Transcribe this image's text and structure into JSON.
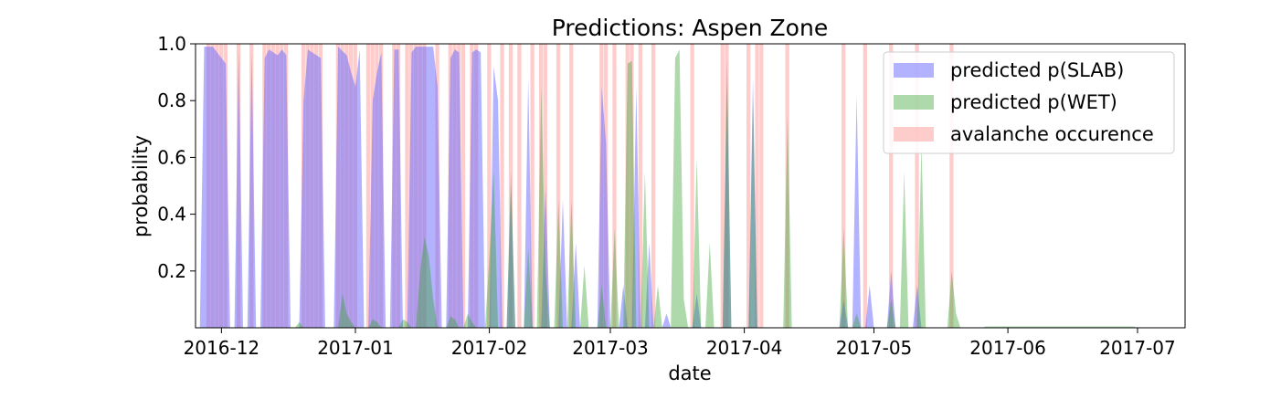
{
  "chart_data": {
    "type": "area",
    "title": "Predictions: Aspen Zone",
    "xlabel": "date",
    "ylabel": "probability",
    "x_range": [
      "2016-11-25",
      "2017-07-12"
    ],
    "ylim": [
      0.0,
      1.0
    ],
    "x_ticks": [
      "2016-12-01",
      "2017-01-01",
      "2017-02-01",
      "2017-03-01",
      "2017-04-01",
      "2017-05-01",
      "2017-06-01",
      "2017-07-01"
    ],
    "x_tick_labels": [
      "2016-12",
      "2017-01",
      "2017-02",
      "2017-03",
      "2017-04",
      "2017-05",
      "2017-06",
      "2017-07"
    ],
    "y_ticks": [
      0.2,
      0.4,
      0.6,
      0.8,
      1.0
    ],
    "y_tick_labels": [
      "0.2",
      "0.4",
      "0.6",
      "0.8",
      "1.0"
    ],
    "grid": false,
    "legend_position": "top-right",
    "series": [
      {
        "name": "predicted p(SLAB)",
        "color": "#6666ff",
        "points": [
          [
            "2016-11-26",
            0.0
          ],
          [
            "2016-11-27",
            0.99
          ],
          [
            "2016-11-29",
            0.99
          ],
          [
            "2016-11-30",
            0.97
          ],
          [
            "2016-12-02",
            0.93
          ],
          [
            "2016-12-03",
            0.0
          ],
          [
            "2016-12-04",
            0.0
          ],
          [
            "2016-12-05",
            0.98
          ],
          [
            "2016-12-06",
            0.0
          ],
          [
            "2016-12-07",
            0.0
          ],
          [
            "2016-12-08",
            0.97
          ],
          [
            "2016-12-09",
            0.0
          ],
          [
            "2016-12-10",
            0.0
          ],
          [
            "2016-12-11",
            0.95
          ],
          [
            "2016-12-12",
            0.98
          ],
          [
            "2016-12-14",
            0.96
          ],
          [
            "2016-12-15",
            0.98
          ],
          [
            "2016-12-16",
            0.96
          ],
          [
            "2016-12-17",
            0.0
          ],
          [
            "2016-12-19",
            0.0
          ],
          [
            "2016-12-20",
            0.8
          ],
          [
            "2016-12-21",
            0.98
          ],
          [
            "2016-12-23",
            0.96
          ],
          [
            "2016-12-24",
            0.95
          ],
          [
            "2016-12-25",
            0.0
          ],
          [
            "2016-12-27",
            0.0
          ],
          [
            "2016-12-28",
            0.99
          ],
          [
            "2016-12-30",
            0.96
          ],
          [
            "2016-12-31",
            0.9
          ],
          [
            "2017-01-01",
            0.85
          ],
          [
            "2017-01-02",
            0.98
          ],
          [
            "2017-01-03",
            0.0
          ],
          [
            "2017-01-04",
            0.0
          ],
          [
            "2017-01-05",
            0.8
          ],
          [
            "2017-01-06",
            0.9
          ],
          [
            "2017-01-07",
            0.97
          ],
          [
            "2017-01-08",
            0.0
          ],
          [
            "2017-01-09",
            0.0
          ],
          [
            "2017-01-10",
            0.98
          ],
          [
            "2017-01-11",
            0.98
          ],
          [
            "2017-01-12",
            0.0
          ],
          [
            "2017-01-13",
            0.0
          ],
          [
            "2017-01-14",
            0.97
          ],
          [
            "2017-01-15",
            0.99
          ],
          [
            "2017-01-16",
            0.99
          ],
          [
            "2017-01-17",
            0.99
          ],
          [
            "2017-01-18",
            0.99
          ],
          [
            "2017-01-19",
            0.99
          ],
          [
            "2017-01-20",
            0.85
          ],
          [
            "2017-01-21",
            0.0
          ],
          [
            "2017-01-22",
            0.0
          ],
          [
            "2017-01-23",
            0.95
          ],
          [
            "2017-01-24",
            0.98
          ],
          [
            "2017-01-25",
            0.97
          ],
          [
            "2017-01-26",
            0.0
          ],
          [
            "2017-01-27",
            0.0
          ],
          [
            "2017-01-28",
            0.97
          ],
          [
            "2017-01-29",
            0.98
          ],
          [
            "2017-01-30",
            0.97
          ],
          [
            "2017-01-31",
            0.0
          ],
          [
            "2017-02-01",
            0.0
          ],
          [
            "2017-02-02",
            0.92
          ],
          [
            "2017-02-03",
            0.8
          ],
          [
            "2017-02-04",
            0.0
          ],
          [
            "2017-02-05",
            0.0
          ],
          [
            "2017-02-06",
            0.5
          ],
          [
            "2017-02-07",
            0.0
          ],
          [
            "2017-02-09",
            0.0
          ],
          [
            "2017-02-10",
            0.88
          ],
          [
            "2017-02-11",
            0.0
          ],
          [
            "2017-02-13",
            0.0
          ],
          [
            "2017-02-14",
            0.5
          ],
          [
            "2017-02-15",
            0.0
          ],
          [
            "2017-02-17",
            0.0
          ],
          [
            "2017-02-18",
            0.45
          ],
          [
            "2017-02-19",
            0.0
          ],
          [
            "2017-02-20",
            0.0
          ],
          [
            "2017-02-21",
            0.3
          ],
          [
            "2017-02-22",
            0.0
          ],
          [
            "2017-02-26",
            0.0
          ],
          [
            "2017-02-27",
            0.85
          ],
          [
            "2017-02-28",
            0.65
          ],
          [
            "2017-03-01",
            0.0
          ],
          [
            "2017-03-03",
            0.0
          ],
          [
            "2017-03-04",
            0.15
          ],
          [
            "2017-03-05",
            0.0
          ],
          [
            "2017-03-06",
            0.0
          ],
          [
            "2017-03-07",
            0.85
          ],
          [
            "2017-03-08",
            0.0
          ],
          [
            "2017-03-09",
            0.0
          ],
          [
            "2017-03-10",
            0.3
          ],
          [
            "2017-03-11",
            0.0
          ],
          [
            "2017-03-13",
            0.0
          ],
          [
            "2017-03-14",
            0.05
          ],
          [
            "2017-03-15",
            0.0
          ],
          [
            "2017-03-20",
            0.0
          ],
          [
            "2017-03-21",
            0.12
          ],
          [
            "2017-03-22",
            0.0
          ],
          [
            "2017-03-27",
            0.0
          ],
          [
            "2017-03-28",
            0.85
          ],
          [
            "2017-03-29",
            0.0
          ],
          [
            "2017-04-02",
            0.0
          ],
          [
            "2017-04-03",
            0.88
          ],
          [
            "2017-04-04",
            0.0
          ],
          [
            "2017-04-23",
            0.0
          ],
          [
            "2017-04-24",
            0.1
          ],
          [
            "2017-04-25",
            0.0
          ],
          [
            "2017-04-26",
            0.0
          ],
          [
            "2017-04-27",
            0.82
          ],
          [
            "2017-04-28",
            0.0
          ],
          [
            "2017-04-29",
            0.0
          ],
          [
            "2017-04-30",
            0.15
          ],
          [
            "2017-05-01",
            0.0
          ],
          [
            "2017-05-04",
            0.0
          ],
          [
            "2017-05-05",
            0.2
          ],
          [
            "2017-05-06",
            0.0
          ],
          [
            "2017-05-10",
            0.0
          ],
          [
            "2017-05-11",
            0.15
          ],
          [
            "2017-05-12",
            0.0
          ]
        ]
      },
      {
        "name": "predicted p(WET)",
        "color": "#33a02c",
        "points": [
          [
            "2016-12-18",
            0.0
          ],
          [
            "2016-12-19",
            0.02
          ],
          [
            "2016-12-20",
            0.0
          ],
          [
            "2016-12-28",
            0.0
          ],
          [
            "2016-12-29",
            0.12
          ],
          [
            "2016-12-30",
            0.05
          ],
          [
            "2016-12-31",
            0.02
          ],
          [
            "2017-01-01",
            0.0
          ],
          [
            "2017-01-04",
            0.0
          ],
          [
            "2017-01-05",
            0.03
          ],
          [
            "2017-01-06",
            0.02
          ],
          [
            "2017-01-07",
            0.0
          ],
          [
            "2017-01-11",
            0.0
          ],
          [
            "2017-01-12",
            0.03
          ],
          [
            "2017-01-13",
            0.02
          ],
          [
            "2017-01-14",
            0.0
          ],
          [
            "2017-01-15",
            0.0
          ],
          [
            "2017-01-16",
            0.2
          ],
          [
            "2017-01-17",
            0.32
          ],
          [
            "2017-01-18",
            0.25
          ],
          [
            "2017-01-19",
            0.1
          ],
          [
            "2017-01-20",
            0.0
          ],
          [
            "2017-01-22",
            0.0
          ],
          [
            "2017-01-23",
            0.04
          ],
          [
            "2017-01-24",
            0.03
          ],
          [
            "2017-01-25",
            0.0
          ],
          [
            "2017-01-26",
            0.0
          ],
          [
            "2017-01-27",
            0.05
          ],
          [
            "2017-01-28",
            0.02
          ],
          [
            "2017-01-29",
            0.0
          ],
          [
            "2017-01-31",
            0.0
          ],
          [
            "2017-02-01",
            0.25
          ],
          [
            "2017-02-02",
            0.55
          ],
          [
            "2017-02-03",
            0.0
          ],
          [
            "2017-02-05",
            0.0
          ],
          [
            "2017-02-06",
            0.55
          ],
          [
            "2017-02-07",
            0.0
          ],
          [
            "2017-02-09",
            0.0
          ],
          [
            "2017-02-10",
            0.28
          ],
          [
            "2017-02-11",
            0.0
          ],
          [
            "2017-02-12",
            0.0
          ],
          [
            "2017-02-13",
            0.85
          ],
          [
            "2017-02-14",
            0.2
          ],
          [
            "2017-02-15",
            0.0
          ],
          [
            "2017-02-16",
            0.0
          ],
          [
            "2017-02-17",
            0.45
          ],
          [
            "2017-02-18",
            0.0
          ],
          [
            "2017-02-19",
            0.0
          ],
          [
            "2017-02-20",
            0.45
          ],
          [
            "2017-02-21",
            0.0
          ],
          [
            "2017-02-22",
            0.0
          ],
          [
            "2017-02-23",
            0.22
          ],
          [
            "2017-02-24",
            0.0
          ],
          [
            "2017-02-26",
            0.0
          ],
          [
            "2017-02-27",
            0.15
          ],
          [
            "2017-02-28",
            0.0
          ],
          [
            "2017-03-01",
            0.0
          ],
          [
            "2017-03-02",
            0.35
          ],
          [
            "2017-03-03",
            0.0
          ],
          [
            "2017-03-04",
            0.0
          ],
          [
            "2017-03-05",
            0.93
          ],
          [
            "2017-03-06",
            0.94
          ],
          [
            "2017-03-07",
            0.0
          ],
          [
            "2017-03-08",
            0.0
          ],
          [
            "2017-03-09",
            0.55
          ],
          [
            "2017-03-10",
            0.0
          ],
          [
            "2017-03-11",
            0.0
          ],
          [
            "2017-03-12",
            0.15
          ],
          [
            "2017-03-13",
            0.0
          ],
          [
            "2017-03-15",
            0.0
          ],
          [
            "2017-03-16",
            0.95
          ],
          [
            "2017-03-17",
            0.98
          ],
          [
            "2017-03-18",
            0.1
          ],
          [
            "2017-03-19",
            0.0
          ],
          [
            "2017-03-20",
            0.0
          ],
          [
            "2017-03-21",
            0.6
          ],
          [
            "2017-03-22",
            0.0
          ],
          [
            "2017-03-23",
            0.0
          ],
          [
            "2017-03-24",
            0.3
          ],
          [
            "2017-03-25",
            0.0
          ],
          [
            "2017-03-27",
            0.0
          ],
          [
            "2017-03-28",
            0.95
          ],
          [
            "2017-03-29",
            0.0
          ],
          [
            "2017-04-02",
            0.0
          ],
          [
            "2017-04-03",
            0.8
          ],
          [
            "2017-04-04",
            0.0
          ],
          [
            "2017-04-10",
            0.0
          ],
          [
            "2017-04-11",
            0.75
          ],
          [
            "2017-04-12",
            0.0
          ],
          [
            "2017-04-23",
            0.0
          ],
          [
            "2017-04-24",
            0.35
          ],
          [
            "2017-04-25",
            0.0
          ],
          [
            "2017-04-26",
            0.0
          ],
          [
            "2017-04-27",
            0.05
          ],
          [
            "2017-04-28",
            0.0
          ],
          [
            "2017-05-04",
            0.0
          ],
          [
            "2017-05-05",
            0.1
          ],
          [
            "2017-05-06",
            0.0
          ],
          [
            "2017-05-07",
            0.0
          ],
          [
            "2017-05-08",
            0.55
          ],
          [
            "2017-05-09",
            0.0
          ],
          [
            "2017-05-11",
            0.0
          ],
          [
            "2017-05-12",
            0.65
          ],
          [
            "2017-05-13",
            0.0
          ],
          [
            "2017-05-18",
            0.0
          ],
          [
            "2017-05-19",
            0.2
          ],
          [
            "2017-05-20",
            0.05
          ],
          [
            "2017-05-21",
            0.0
          ],
          [
            "2017-05-26",
            0.0
          ],
          [
            "2017-05-27",
            0.005
          ],
          [
            "2017-06-30",
            0.005
          ],
          [
            "2017-07-01",
            0.0
          ]
        ]
      }
    ],
    "avalanche_occurence": {
      "name": "avalanche occurence",
      "color": "#ff9999",
      "value": 1.0,
      "dates": [
        "2016-11-28",
        "2016-11-29",
        "2016-11-30",
        "2016-12-01",
        "2016-12-02",
        "2016-12-05",
        "2016-12-08",
        "2016-12-11",
        "2016-12-12",
        "2016-12-13",
        "2016-12-14",
        "2016-12-15",
        "2016-12-16",
        "2016-12-20",
        "2016-12-21",
        "2016-12-22",
        "2016-12-23",
        "2016-12-24",
        "2016-12-28",
        "2016-12-29",
        "2016-12-30",
        "2016-12-31",
        "2017-01-01",
        "2017-01-04",
        "2017-01-05",
        "2017-01-06",
        "2017-01-07",
        "2017-01-10",
        "2017-01-11",
        "2017-01-13",
        "2017-01-14",
        "2017-01-15",
        "2017-01-16",
        "2017-01-17",
        "2017-01-20",
        "2017-01-23",
        "2017-01-24",
        "2017-01-25",
        "2017-01-26",
        "2017-01-28",
        "2017-01-29",
        "2017-02-01",
        "2017-02-04",
        "2017-02-06",
        "2017-02-08",
        "2017-02-11",
        "2017-02-13",
        "2017-02-14",
        "2017-02-17",
        "2017-02-20",
        "2017-02-27",
        "2017-02-28",
        "2017-03-02",
        "2017-03-05",
        "2017-03-06",
        "2017-03-08",
        "2017-03-11",
        "2017-03-20",
        "2017-03-27",
        "2017-03-28",
        "2017-04-02",
        "2017-04-04",
        "2017-04-05",
        "2017-04-11",
        "2017-04-24",
        "2017-04-29",
        "2017-05-05",
        "2017-05-11",
        "2017-05-19"
      ]
    }
  }
}
